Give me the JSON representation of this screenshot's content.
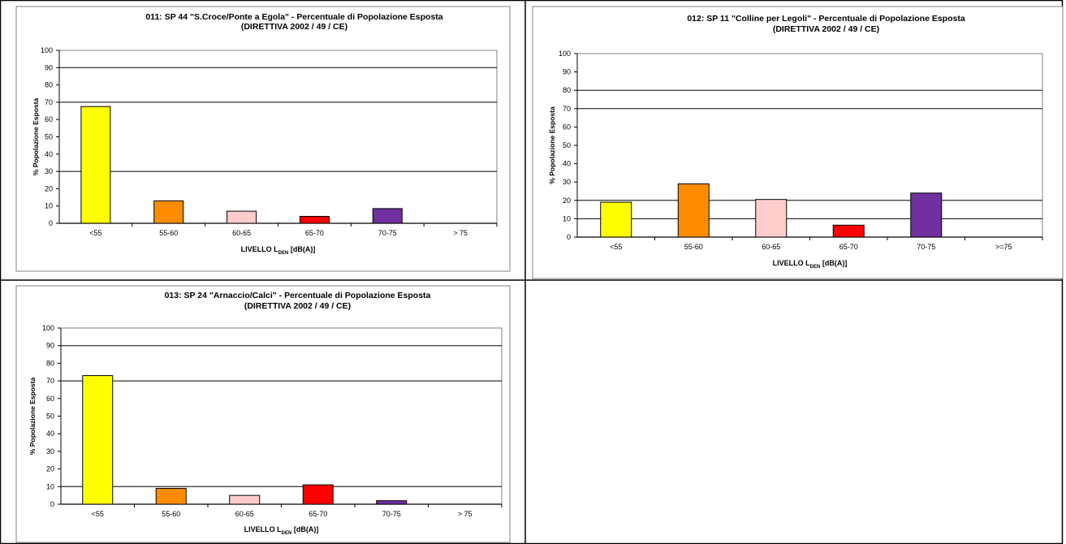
{
  "chart_data": [
    {
      "type": "bar",
      "title": "011: SP 44 \"S.Croce/Ponte a Egola\" - Percentuale di Popolazione Esposta",
      "subtitle": "(DIRETTIVA 2002 / 49 / CE)",
      "xlabel": "LIVELLO L",
      "xlabel_sub": "DEN",
      "xlabel_unit": "[dB(A)]",
      "ylabel": "% Popolazione Esposta",
      "ylim": [
        0,
        100
      ],
      "yticks": [
        0,
        10,
        20,
        30,
        40,
        50,
        60,
        70,
        80,
        90,
        100
      ],
      "gridlines": [
        30,
        70,
        90
      ],
      "categories": [
        "<55",
        "55-60",
        "60-65",
        "65-70",
        "70-75",
        "> 75"
      ],
      "values": [
        67.5,
        13,
        7,
        4,
        8.5,
        0
      ],
      "colors": [
        "#ffff00",
        "#ff8c00",
        "#ffcccc",
        "#ff0000",
        "#7030a0",
        "#ffffff"
      ]
    },
    {
      "type": "bar",
      "title": "012: SP 11 \"Colline per Legoli\" - Percentuale di Popolazione Esposta",
      "subtitle": "(DIRETTIVA 2002 / 49 / CE)",
      "xlabel": "LIVELLO L",
      "xlabel_sub": "DEN",
      "xlabel_unit": "[dB(A)]",
      "ylabel": "% Popolazione Esposta",
      "ylim": [
        0,
        100
      ],
      "yticks": [
        0,
        10,
        20,
        30,
        40,
        50,
        60,
        70,
        80,
        90,
        100
      ],
      "gridlines": [
        10,
        20,
        70,
        80
      ],
      "categories": [
        "<55",
        "55-60",
        "60-65",
        "65-70",
        "70-75",
        ">=75"
      ],
      "values": [
        19,
        29,
        20.5,
        6.5,
        24,
        0
      ],
      "colors": [
        "#ffff00",
        "#ff8c00",
        "#ffcccc",
        "#ff0000",
        "#7030a0",
        "#ffffff"
      ]
    },
    {
      "type": "bar",
      "title": "013: SP 24 \"Arnaccio/Calci\" - Percentuale di Popolazione Esposta",
      "subtitle": "(DIRETTIVA 2002 / 49 / CE)",
      "xlabel": "LIVELLO L",
      "xlabel_sub": "DEN",
      "xlabel_unit": "[dB(A)]",
      "ylabel": "% Popolazione Esposta",
      "ylim": [
        0,
        100
      ],
      "yticks": [
        0,
        10,
        20,
        30,
        40,
        50,
        60,
        70,
        80,
        90,
        100
      ],
      "gridlines": [
        10,
        70,
        90
      ],
      "categories": [
        "<55",
        "55-60",
        "60-65",
        "65-70",
        "70-75",
        "> 75"
      ],
      "values": [
        73,
        9,
        5,
        11,
        2,
        0
      ],
      "colors": [
        "#ffff00",
        "#ff8c00",
        "#ffcccc",
        "#ff0000",
        "#7030a0",
        "#ffffff"
      ]
    }
  ]
}
